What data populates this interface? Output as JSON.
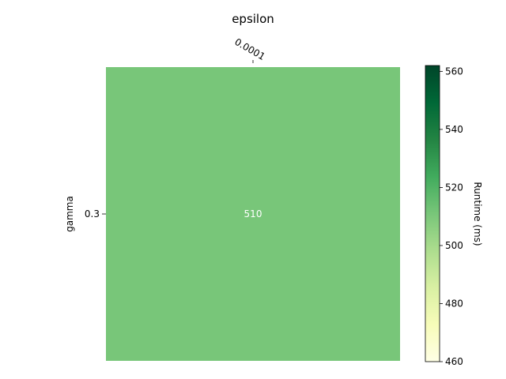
{
  "chart_data": {
    "type": "heatmap",
    "title": "epsilon",
    "xlabel": "",
    "ylabel": "gamma",
    "x_categories": [
      "0.0001"
    ],
    "y_categories": [
      "0.3"
    ],
    "values": [
      [
        510
      ]
    ],
    "cell_labels": [
      [
        "510"
      ]
    ],
    "colorbar": {
      "label": "Runtime (ms)",
      "colormap": "YlGn",
      "range": [
        460,
        562
      ],
      "ticks": [
        460,
        480,
        500,
        520,
        540,
        560
      ],
      "tick_labels": [
        "460",
        "480",
        "500",
        "520",
        "540",
        "560"
      ]
    },
    "x_tick_position": "top",
    "x_tick_rotation": "rotated",
    "grid": false,
    "colors": {
      "cell": "#78c679",
      "cell_text": "#ffffff",
      "cmap_stops": [
        "#ffffe5",
        "#f7fcb9",
        "#d9f0a3",
        "#addd8e",
        "#78c679",
        "#41ab5d",
        "#238443",
        "#006837",
        "#004529"
      ]
    }
  }
}
